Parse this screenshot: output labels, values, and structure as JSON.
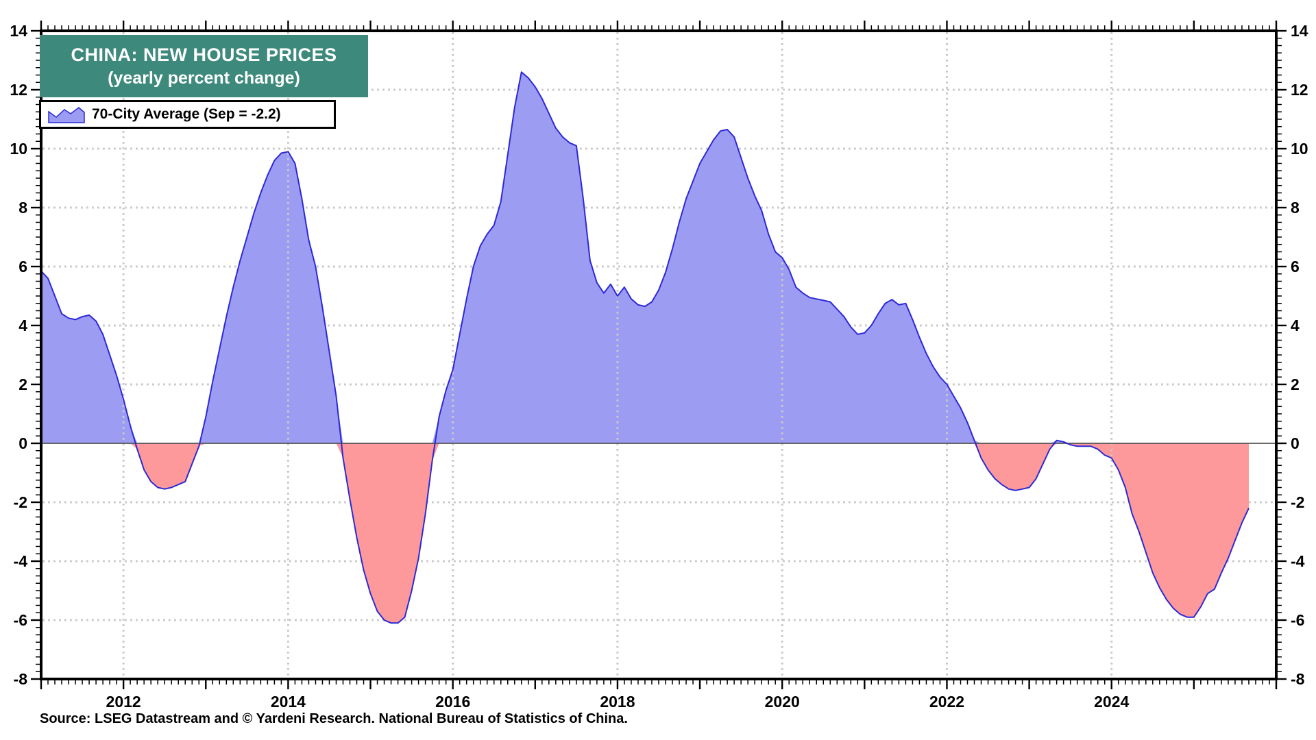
{
  "title": {
    "line1": "CHINA: NEW HOUSE PRICES",
    "line2": "(yearly percent change)",
    "bg_color": "#3d8a7c",
    "text_color": "#ffffff"
  },
  "legend": {
    "label": "70-City Average (Sep = -2.2)"
  },
  "footer": {
    "source": "Source: LSEG Datastream and © Yardeni Research. National Bureau of Statistics of China."
  },
  "chart_data": {
    "type": "area",
    "title": "CHINA: NEW HOUSE PRICES (yearly percent change)",
    "series_name": "70-City Average",
    "latest": {
      "month": "Sep",
      "value": -2.2
    },
    "frequency": "monthly",
    "start": "2011-01",
    "end": "2025-09",
    "values": [
      5.85,
      5.6,
      5.0,
      4.4,
      4.25,
      4.2,
      4.3,
      4.35,
      4.15,
      3.7,
      3.0,
      2.3,
      1.5,
      0.6,
      -0.2,
      -0.9,
      -1.3,
      -1.5,
      -1.55,
      -1.5,
      -1.4,
      -1.3,
      -0.7,
      -0.1,
      0.9,
      2.1,
      3.2,
      4.3,
      5.3,
      6.2,
      7.0,
      7.8,
      8.5,
      9.1,
      9.6,
      9.85,
      9.9,
      9.5,
      8.3,
      6.9,
      6.0,
      4.6,
      3.1,
      1.6,
      -0.5,
      -1.9,
      -3.2,
      -4.3,
      -5.1,
      -5.7,
      -6.0,
      -6.1,
      -6.1,
      -5.9,
      -5.0,
      -3.9,
      -2.4,
      -0.6,
      0.9,
      1.8,
      2.5,
      3.7,
      4.9,
      6.0,
      6.7,
      7.1,
      7.4,
      8.2,
      9.8,
      11.4,
      12.6,
      12.4,
      12.1,
      11.7,
      11.2,
      10.7,
      10.4,
      10.2,
      10.1,
      8.3,
      6.2,
      5.45,
      5.1,
      5.4,
      5.0,
      5.3,
      4.9,
      4.7,
      4.65,
      4.8,
      5.2,
      5.8,
      6.6,
      7.5,
      8.3,
      8.9,
      9.5,
      9.9,
      10.3,
      10.6,
      10.65,
      10.4,
      9.7,
      9.0,
      8.4,
      7.9,
      7.1,
      6.5,
      6.3,
      5.9,
      5.3,
      5.1,
      4.95,
      4.9,
      4.85,
      4.8,
      4.55,
      4.3,
      3.95,
      3.7,
      3.75,
      4.0,
      4.4,
      4.75,
      4.88,
      4.7,
      4.75,
      4.2,
      3.6,
      3.05,
      2.6,
      2.25,
      2.0,
      1.6,
      1.2,
      0.7,
      0.1,
      -0.5,
      -0.9,
      -1.2,
      -1.4,
      -1.55,
      -1.6,
      -1.55,
      -1.5,
      -1.2,
      -0.7,
      -0.2,
      0.1,
      0.05,
      -0.05,
      -0.1,
      -0.1,
      -0.1,
      -0.2,
      -0.4,
      -0.5,
      -0.9,
      -1.5,
      -2.4,
      -3.0,
      -3.7,
      -4.4,
      -4.9,
      -5.3,
      -5.6,
      -5.8,
      -5.9,
      -5.9,
      -5.55,
      -5.1,
      -4.95,
      -4.4,
      -3.9,
      -3.3,
      -2.7,
      -2.2
    ],
    "ylim": [
      -8,
      14
    ],
    "xlim": [
      2011,
      2026
    ],
    "y_tick_labels": [
      14,
      12,
      10,
      8,
      6,
      4,
      2,
      0,
      -2,
      -4,
      -6,
      -8
    ],
    "x_tick_labels": [
      2012,
      2014,
      2016,
      2018,
      2020,
      2022,
      2024
    ],
    "grid": {
      "style": "dotted",
      "color": "#c9c9c9",
      "h_values": [
        12,
        10,
        8,
        6,
        4,
        2,
        -2,
        -4,
        -6
      ],
      "v_years": [
        2012,
        2014,
        2016,
        2018,
        2020,
        2022,
        2024
      ]
    },
    "colors": {
      "positive_fill": "#9d9cf3",
      "negative_fill": "#fd999b",
      "line": "#2b29d8",
      "zero_line": "#555555",
      "frame": "#000000",
      "tick": "#000000",
      "label": "#000000"
    }
  }
}
